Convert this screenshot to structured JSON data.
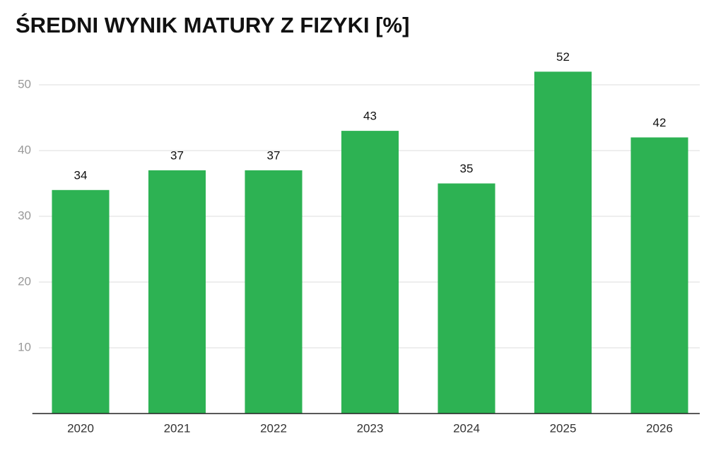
{
  "chart_data": {
    "type": "bar",
    "title": "ŚREDNI WYNIK MATURY Z FIZYKI [%]",
    "categories": [
      "2020",
      "2021",
      "2022",
      "2023",
      "2024",
      "2025",
      "2026"
    ],
    "values": [
      34,
      37,
      37,
      43,
      35,
      52,
      42
    ],
    "color": "#2db253",
    "ylim": [
      0,
      55
    ],
    "yticks": [
      10,
      20,
      30,
      40,
      50
    ],
    "grid": true
  }
}
